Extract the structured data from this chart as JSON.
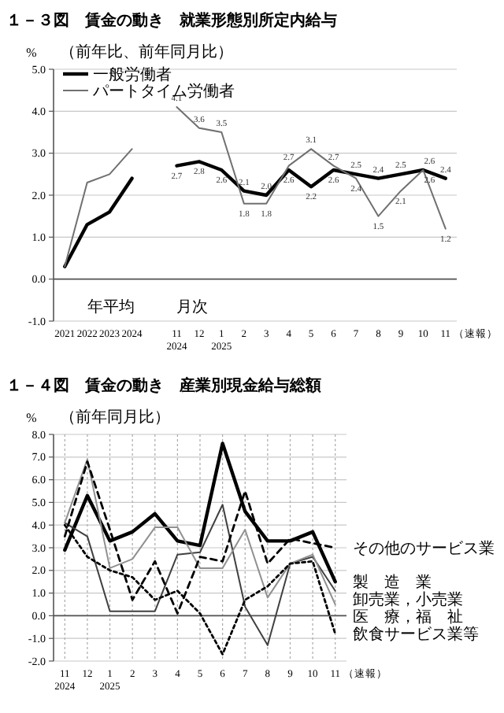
{
  "chart_data": [
    {
      "type": "line",
      "title": "１－３図　賃金の動き　就業形態別所定内給与",
      "subtitle": "（前年比、前年同月比）",
      "ylabel": "%",
      "categories": [
        "2021",
        "2022",
        "2023",
        "2024",
        null,
        "11\n2024",
        "12",
        "1\n2025",
        "2",
        "3",
        "4",
        "5",
        "6",
        "7",
        "8",
        "9",
        "10",
        "11"
      ],
      "series": [
        {
          "name": "一般労働者",
          "color": "#000000",
          "values": [
            0.3,
            1.3,
            1.6,
            2.4,
            null,
            2.7,
            2.8,
            2.6,
            2.1,
            2.0,
            2.6,
            2.2,
            2.6,
            2.5,
            2.4,
            2.5,
            2.6,
            2.4
          ],
          "value_labels": [
            null,
            null,
            null,
            null,
            null,
            "2.7",
            "2.8",
            "2.6",
            "2.1",
            "2.0",
            "2.6",
            "2.2",
            "2.6",
            "2.5",
            "2.4",
            "2.5",
            "2.6",
            "2.4"
          ]
        },
        {
          "name": "パートタイム労働者",
          "color": "#707070",
          "values": [
            0.3,
            2.3,
            2.5,
            3.1,
            null,
            4.1,
            3.6,
            3.5,
            1.8,
            1.8,
            2.7,
            3.1,
            2.7,
            2.4,
            1.5,
            2.1,
            2.6,
            1.2
          ],
          "value_labels": [
            null,
            null,
            null,
            null,
            null,
            "4.1",
            "3.6",
            "3.5",
            "1.8",
            "1.8",
            "2.7",
            "3.1",
            "2.7",
            "2.4",
            "1.5",
            "2.1",
            "2.6",
            "1.2"
          ]
        }
      ],
      "ylim": [
        -1,
        5
      ],
      "yticks": [
        {
          "value": -1,
          "label": "-1.0"
        },
        {
          "value": 0,
          "label": "0.0"
        },
        {
          "value": 1,
          "label": "1.0"
        },
        {
          "value": 2,
          "label": "2.0"
        },
        {
          "value": 3,
          "label": "3.0"
        },
        {
          "value": 4,
          "label": "4.0"
        },
        {
          "value": 5,
          "label": "5.0"
        }
      ],
      "grid": "y",
      "legend": "top left",
      "line_style": "solid",
      "annotations": [
        "年平均",
        "月次",
        "（速報）"
      ]
    },
    {
      "type": "line",
      "title": "１－４図　賃金の動き　産業別現金給与総額",
      "subtitle": "（前年同月比）",
      "ylabel": "%",
      "categories": [
        "11\n2024",
        "12",
        "1\n2025",
        "2",
        "3",
        "4",
        "5",
        "6",
        "7",
        "8",
        "9",
        "10",
        "11"
      ],
      "annotations": [
        "（速報）"
      ],
      "series": [
        {
          "name": "製　造　業",
          "color": "#000000",
          "line_style": "solid",
          "values": [
            2.9,
            5.3,
            3.3,
            3.7,
            4.5,
            3.3,
            3.1,
            7.6,
            4.6,
            3.3,
            3.3,
            3.7,
            1.5
          ]
        },
        {
          "name": "卸売業，小売業",
          "color": "#404040",
          "line_style": "solid",
          "values": [
            4.1,
            3.5,
            0.2,
            0.2,
            0.2,
            2.7,
            2.8,
            4.9,
            0.4,
            -1.3,
            2.3,
            2.6,
            1.1
          ]
        },
        {
          "name": "医　療，福　祉",
          "color": "#909090",
          "line_style": "solid",
          "values": [
            4.1,
            6.9,
            2.1,
            2.5,
            3.9,
            3.9,
            2.1,
            2.1,
            3.8,
            0.8,
            2.3,
            2.7,
            0.5
          ]
        },
        {
          "name": "その他のサービス業",
          "color": "#000000",
          "line_style": "dashed",
          "values": [
            3.5,
            6.8,
            3.8,
            0.7,
            2.4,
            0.1,
            2.6,
            2.4,
            5.5,
            2.3,
            3.4,
            3.2,
            3.0
          ]
        },
        {
          "name": "飲食サービス業等",
          "color": "#000000",
          "line_style": "dotted",
          "values": [
            4.0,
            2.6,
            2.0,
            1.7,
            0.7,
            1.1,
            0.1,
            -1.7,
            0.7,
            1.3,
            2.3,
            2.4,
            -0.8
          ]
        }
      ],
      "ylim": [
        -2,
        8
      ],
      "yticks": [
        {
          "value": -2,
          "label": "-2.0"
        },
        {
          "value": -1,
          "label": "-1.0"
        },
        {
          "value": 0,
          "label": "0.0"
        },
        {
          "value": 1,
          "label": "1.0"
        },
        {
          "value": 2,
          "label": "2.0"
        },
        {
          "value": 3,
          "label": "3.0"
        },
        {
          "value": 4,
          "label": "4.0"
        },
        {
          "value": 5,
          "label": "5.0"
        },
        {
          "value": 6,
          "label": "6.0"
        },
        {
          "value": 7,
          "label": "7.0"
        },
        {
          "value": 8,
          "label": "8.0"
        }
      ],
      "grid": true
    }
  ]
}
